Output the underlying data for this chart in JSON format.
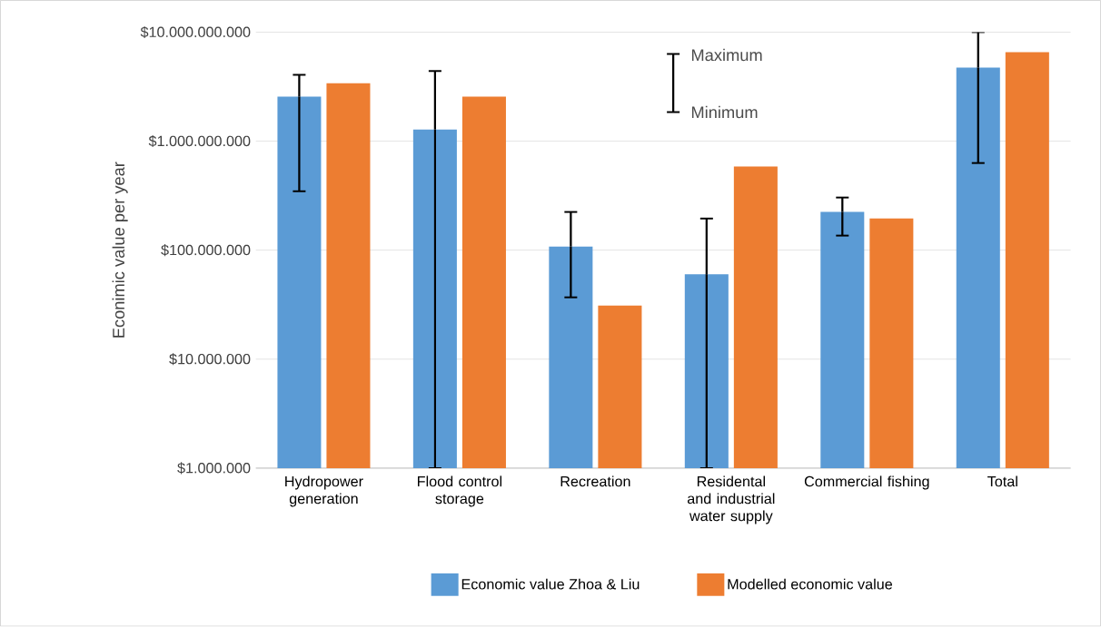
{
  "chart_data": {
    "type": "bar",
    "ylabel": "Econimic value per year",
    "categories": [
      "Hydropower generation",
      "Flood control storage",
      "Recreation",
      "Residental and industrial water supply",
      "Commercial fishing",
      "Total"
    ],
    "series": [
      {
        "name": "Economic value Zhoa & Liu",
        "color": "#5b9bd5",
        "values": [
          2560000000,
          1280000000,
          108000000,
          60000000,
          224000000,
          4730000000
        ],
        "errors": [
          [
            347000000,
            4060000000
          ],
          [
            1000000,
            4400000000
          ],
          [
            36900000,
            224000000
          ],
          [
            1000000,
            195000000
          ],
          [
            136000000,
            304000000
          ],
          [
            630000000,
            10000000000
          ]
        ]
      },
      {
        "name": "Modelled economic value",
        "color": "#ed7d31",
        "values": [
          3400000000,
          2560000000,
          31000000,
          584000000,
          195000000,
          6560000000
        ]
      }
    ],
    "log": "y",
    "ylim": [
      1000000,
      10000000000
    ],
    "yticks": [
      {
        "value": 1000000,
        "label": "$1.000.000"
      },
      {
        "value": 10000000,
        "label": "$10.000.000"
      },
      {
        "value": 100000000,
        "label": "$100.000.000"
      },
      {
        "value": 1000000000,
        "label": "$1.000.000.000"
      },
      {
        "value": 10000000000,
        "label": "$10.000.000.000"
      }
    ],
    "grid": "y",
    "legend": "bottom",
    "annotations": [
      "Maximum",
      "Minimum"
    ]
  }
}
